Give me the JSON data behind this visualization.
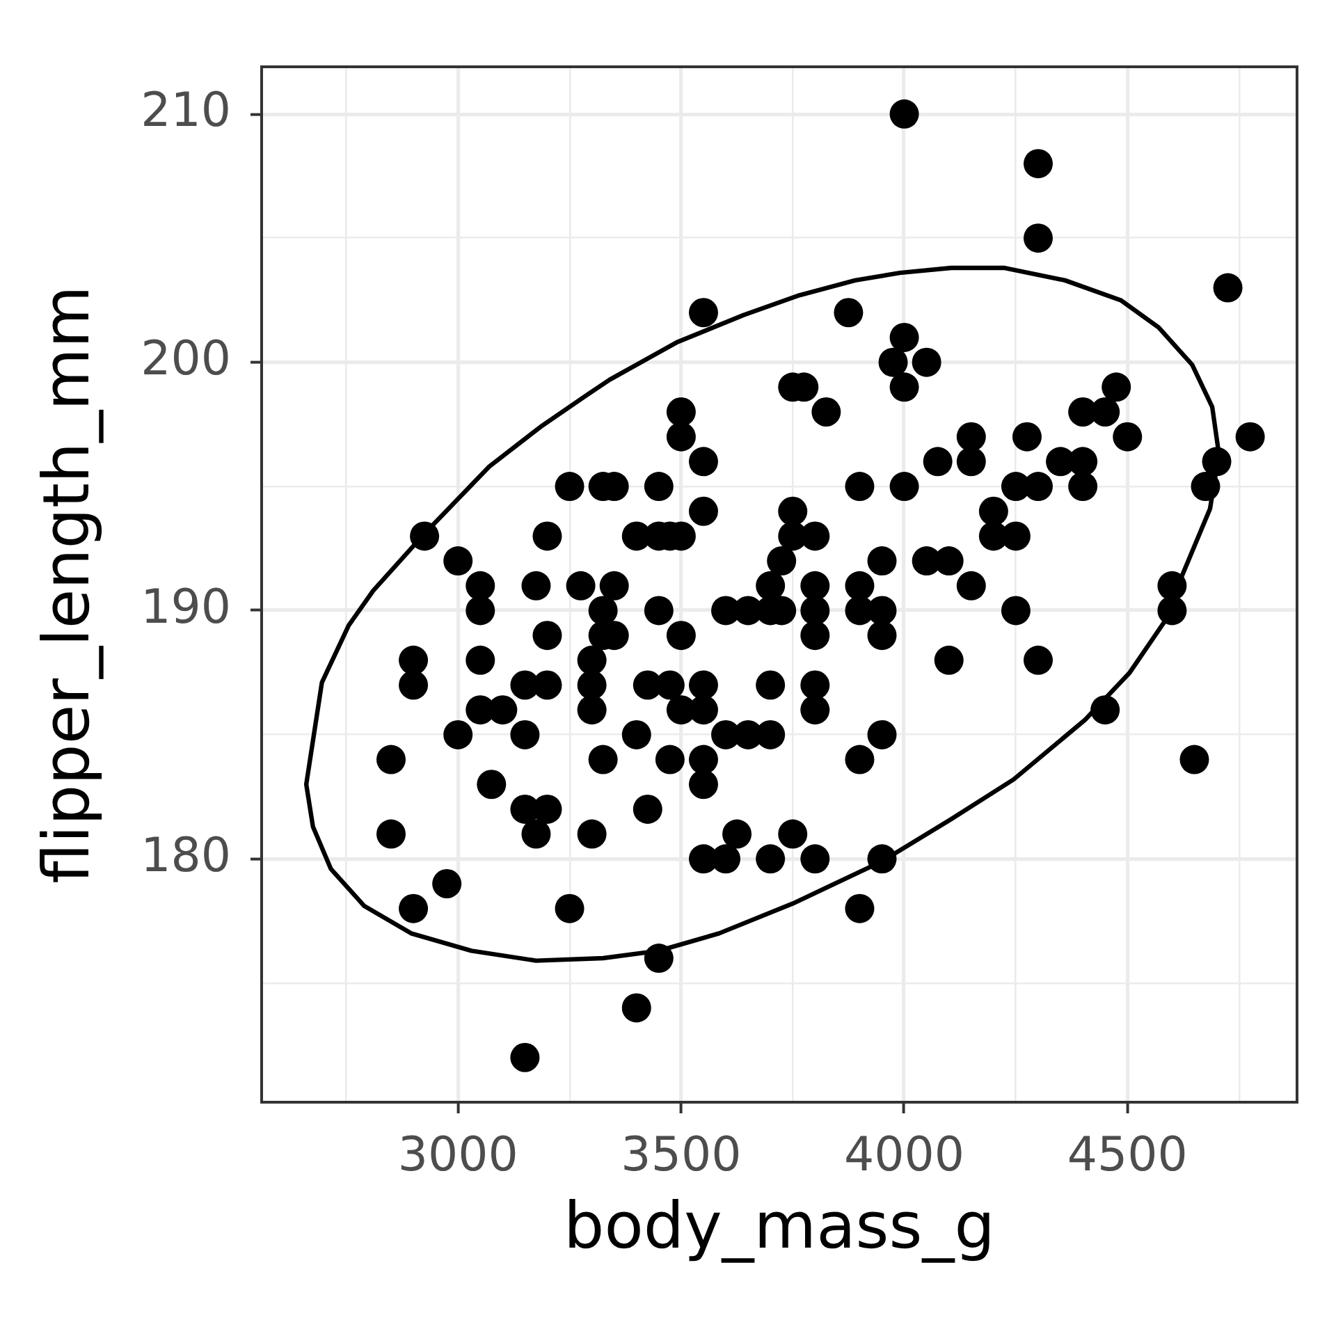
{
  "chart_data": {
    "type": "scatter",
    "xlabel": "body_mass_g",
    "ylabel": "flipper_length_mm",
    "xlim": [
      2560,
      4880
    ],
    "ylim": [
      170.2,
      211.9
    ],
    "xticks": [
      {
        "value": 2750,
        "label": null
      },
      3000,
      {
        "value": 3250,
        "label": null
      },
      3500,
      {
        "value": 3750,
        "label": null
      },
      4000,
      {
        "value": 4250,
        "label": null
      },
      4500,
      {
        "value": 4750,
        "label": null
      }
    ],
    "yticks": [
      {
        "value": 175,
        "label": null
      },
      180,
      {
        "value": 185,
        "label": null
      },
      190,
      {
        "value": 195,
        "label": null
      },
      200,
      {
        "value": 205,
        "label": null
      },
      210
    ],
    "grid": true,
    "marker": "circle",
    "series": [
      {
        "type": "scatter",
        "color": "#000000",
        "x": [
          4000,
          4300,
          4300,
          4725,
          3550,
          3875,
          4000,
          3975,
          4050,
          4000,
          3750,
          3775,
          4475,
          3500,
          3825,
          4400,
          4450,
          3500,
          4150,
          4275,
          4500,
          4775,
          3550,
          4075,
          4150,
          4350,
          4400,
          4700,
          3250,
          3325,
          3350,
          3450,
          3900,
          4000,
          4250,
          4300,
          4400,
          4675,
          3550,
          3750,
          4200,
          2925,
          3200,
          3400,
          3450,
          3475,
          3500,
          3750,
          3800,
          4200,
          4250,
          3000,
          3725,
          3950,
          4050,
          4100,
          3050,
          3175,
          3275,
          3350,
          3700,
          3800,
          3900,
          4150,
          4600,
          3050,
          3325,
          3450,
          3600,
          3650,
          3700,
          3725,
          3800,
          3900,
          3950,
          4250,
          4600,
          3200,
          3325,
          3350,
          3500,
          3800,
          3950,
          2900,
          3050,
          3300,
          4100,
          4300,
          2900,
          3150,
          3200,
          3300,
          3425,
          3475,
          3550,
          3700,
          3800,
          3050,
          3100,
          3300,
          3500,
          3550,
          3800,
          4450,
          3000,
          3150,
          3400,
          3600,
          3650,
          3700,
          3950,
          2850,
          3325,
          3475,
          3550,
          3900,
          4650,
          3075,
          3550,
          3150,
          3200,
          3425,
          2850,
          3175,
          3300,
          3625,
          3750,
          3550,
          3600,
          3700,
          3800,
          3950,
          2975,
          2900,
          3250,
          3900,
          3450,
          3400,
          3150
        ],
        "values": [
          210,
          208,
          205,
          203,
          202,
          202,
          201,
          200,
          200,
          199,
          199,
          199,
          199,
          198,
          198,
          198,
          198,
          197,
          197,
          197,
          197,
          197,
          196,
          196,
          196,
          196,
          196,
          196,
          195,
          195,
          195,
          195,
          195,
          195,
          195,
          195,
          195,
          195,
          194,
          194,
          194,
          193,
          193,
          193,
          193,
          193,
          193,
          193,
          193,
          193,
          193,
          192,
          192,
          192,
          192,
          192,
          191,
          191,
          191,
          191,
          191,
          191,
          191,
          191,
          191,
          190,
          190,
          190,
          190,
          190,
          190,
          190,
          190,
          190,
          190,
          190,
          190,
          189,
          189,
          189,
          189,
          189,
          189,
          188,
          188,
          188,
          188,
          188,
          187,
          187,
          187,
          187,
          187,
          187,
          187,
          187,
          187,
          186,
          186,
          186,
          186,
          186,
          186,
          186,
          185,
          185,
          185,
          185,
          185,
          185,
          185,
          184,
          184,
          184,
          184,
          184,
          184,
          183,
          183,
          182,
          182,
          182,
          181,
          181,
          181,
          181,
          181,
          180,
          180,
          180,
          180,
          180,
          179,
          178,
          178,
          178,
          176,
          174,
          172
        ]
      },
      {
        "type": "line",
        "color": "#000000",
        "marker": "none",
        "line_style": "solid",
        "x": [
          2660,
          2695,
          2755,
          2810,
          2925,
          3070,
          3185,
          3290,
          3340,
          3490,
          3640,
          3765,
          3890,
          3990,
          4105,
          4225,
          4360,
          4485,
          4570,
          4645,
          4690,
          4705,
          null,
          2660,
          2675,
          2715,
          2790,
          2895,
          3030,
          3175,
          3325,
          3450,
          3585,
          3750,
          3950,
          4105,
          4245,
          4405,
          4505,
          4600,
          4620,
          4685,
          4705
        ],
        "values": [
          183.0,
          187.1,
          189.4,
          190.8,
          193.1,
          195.8,
          197.4,
          198.7,
          199.3,
          200.8,
          201.9,
          202.7,
          203.3,
          203.6,
          203.8,
          203.8,
          203.3,
          202.5,
          201.4,
          199.9,
          198.2,
          196.3,
          null,
          183.0,
          181.3,
          179.6,
          178.1,
          177.0,
          176.3,
          175.9,
          176.0,
          176.3,
          177.0,
          178.2,
          179.9,
          181.6,
          183.2,
          185.6,
          187.5,
          190.0,
          191.3,
          194.1,
          196.3
        ]
      }
    ]
  }
}
